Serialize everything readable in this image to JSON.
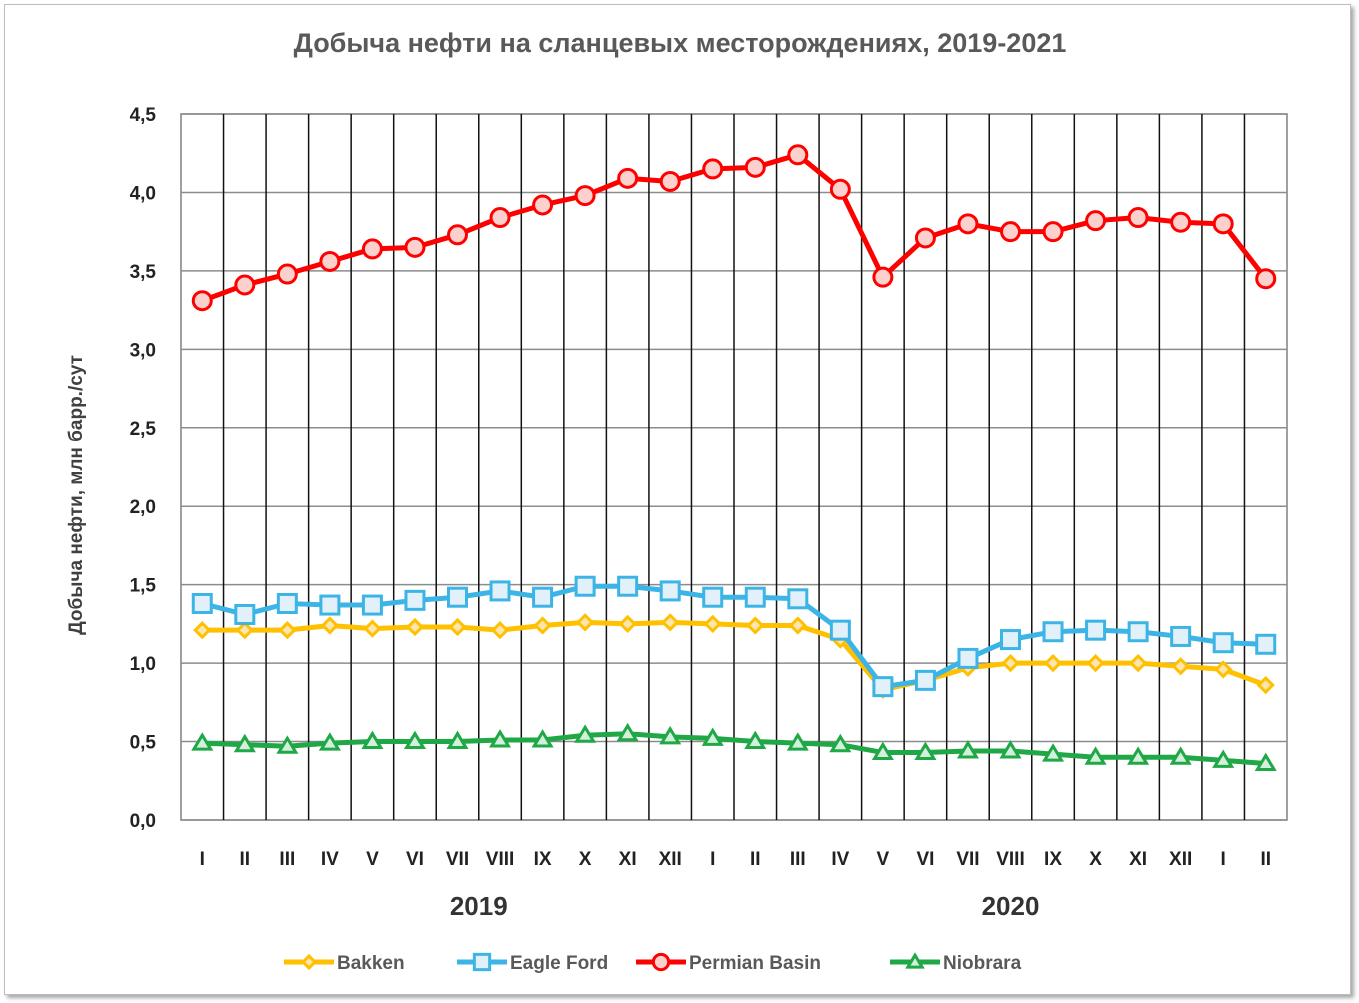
{
  "chart_data": {
    "type": "line",
    "title": "Добыча нефти на сланцевых месторождениях,  2019-2021",
    "ylabel": "Добыча нефти, млн барр./сут",
    "xlabel": "",
    "ylim": [
      0,
      4.5
    ],
    "yticks": [
      "0,0",
      "0,5",
      "1,0",
      "1,5",
      "2,0",
      "2,5",
      "3,0",
      "3,5",
      "4,0",
      "4,5"
    ],
    "grid": true,
    "legend_position": "bottom",
    "categories": [
      "I",
      "II",
      "III",
      "IV",
      "V",
      "VI",
      "VII",
      "VIII",
      "IX",
      "X",
      "XI",
      "XII",
      "I",
      "II",
      "III",
      "IV",
      "V",
      "VI",
      "VII",
      "VIII",
      "IX",
      "X",
      "XI",
      "XII",
      "I",
      "II"
    ],
    "year_labels": [
      {
        "label": "2019",
        "center_index": 6.5
      },
      {
        "label": "2020",
        "center_index": 19.0
      }
    ],
    "series": [
      {
        "name": "Bakken",
        "color": "#ffc000",
        "marker": "diamond",
        "values": [
          1.21,
          1.21,
          1.21,
          1.24,
          1.22,
          1.23,
          1.23,
          1.21,
          1.24,
          1.26,
          1.25,
          1.26,
          1.25,
          1.24,
          1.24,
          1.15,
          0.83,
          0.89,
          0.97,
          1.0,
          1.0,
          1.0,
          1.0,
          0.98,
          0.96,
          0.86
        ]
      },
      {
        "name": "Eagle Ford",
        "color": "#3cb4e6",
        "marker": "square",
        "values": [
          1.38,
          1.31,
          1.38,
          1.37,
          1.37,
          1.4,
          1.42,
          1.46,
          1.42,
          1.49,
          1.49,
          1.46,
          1.42,
          1.42,
          1.41,
          1.21,
          0.85,
          0.89,
          1.03,
          1.15,
          1.2,
          1.21,
          1.2,
          1.17,
          1.13,
          1.12
        ]
      },
      {
        "name": "Permian Basin",
        "color": "#ff0000",
        "marker": "circle",
        "values": [
          3.31,
          3.41,
          3.48,
          3.56,
          3.64,
          3.65,
          3.73,
          3.84,
          3.92,
          3.98,
          4.09,
          4.07,
          4.15,
          4.16,
          4.24,
          4.02,
          3.46,
          3.71,
          3.8,
          3.75,
          3.75,
          3.82,
          3.84,
          3.81,
          3.8,
          3.45
        ]
      },
      {
        "name": "Niobrara",
        "color": "#1fa845",
        "marker": "triangle",
        "values": [
          0.49,
          0.48,
          0.47,
          0.49,
          0.5,
          0.5,
          0.5,
          0.51,
          0.51,
          0.54,
          0.55,
          0.53,
          0.52,
          0.5,
          0.49,
          0.48,
          0.43,
          0.43,
          0.44,
          0.44,
          0.42,
          0.4,
          0.4,
          0.4,
          0.38,
          0.36
        ]
      }
    ]
  }
}
